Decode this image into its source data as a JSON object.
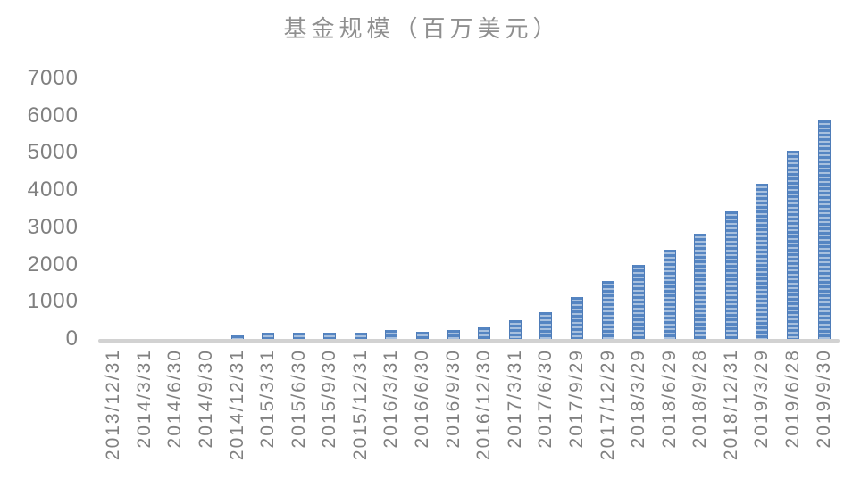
{
  "chart_data": {
    "type": "bar",
    "title": "基金规模（百万美元）",
    "xlabel": "",
    "ylabel": "",
    "categories": [
      "2013/12/31",
      "2014/3/31",
      "2014/6/30",
      "2014/9/30",
      "2014/12/31",
      "2015/3/31",
      "2015/6/30",
      "2015/9/30",
      "2015/12/31",
      "2016/3/31",
      "2016/6/30",
      "2016/9/30",
      "2016/12/30",
      "2017/3/31",
      "2017/6/30",
      "2017/9/29",
      "2017/12/29",
      "2018/3/29",
      "2018/6/29",
      "2018/9/28",
      "2018/12/31",
      "2019/3/29",
      "2019/6/28",
      "2019/9/30"
    ],
    "values": [
      0,
      0,
      0,
      0,
      90,
      170,
      160,
      170,
      165,
      250,
      200,
      230,
      320,
      500,
      730,
      1120,
      1550,
      2000,
      2400,
      2830,
      3440,
      4160,
      5050,
      5880
    ],
    "ylim": [
      0,
      7000
    ],
    "yticks": [
      7000,
      6000,
      5000,
      4000,
      3000,
      2000,
      1000,
      0
    ],
    "grid": false,
    "legend": false,
    "colors": {
      "bar": "#5585c2",
      "bar_stripe": "#a8c0de",
      "bar_edge": "#4e7cb8",
      "axis_line": "#d2d2d2",
      "tick_label": "#808080",
      "title": "#8f8f8f"
    }
  }
}
